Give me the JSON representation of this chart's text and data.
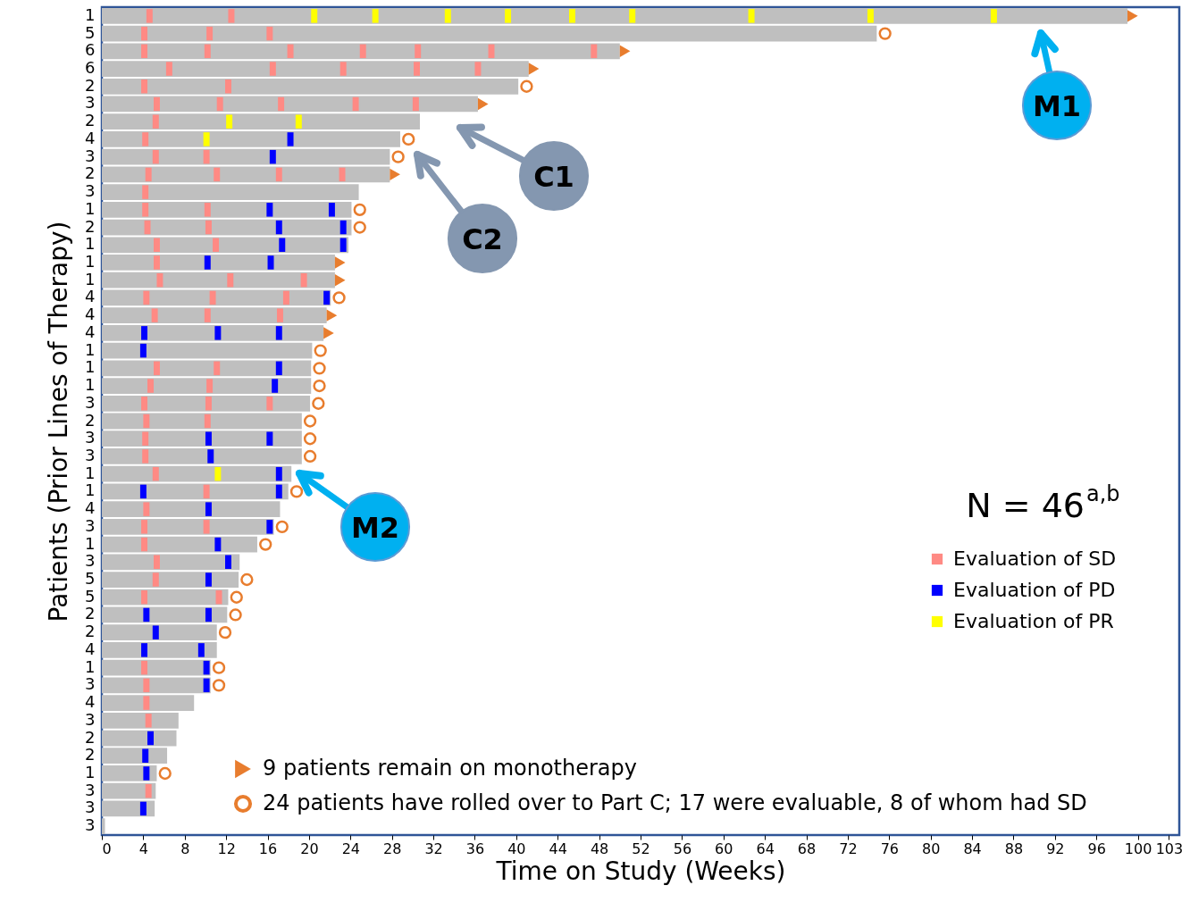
{
  "chart_data": {
    "type": "bar",
    "orientation": "horizontal",
    "xlabel": "Time on Study (Weeks)",
    "ylabel": "Patients (Prior Lines of Therapy)",
    "categories": [
      "1",
      "5",
      "6",
      "6",
      "2",
      "3",
      "2",
      "4",
      "3",
      "2",
      "3",
      "1",
      "2",
      "1",
      "1",
      "1",
      "4",
      "4",
      "4",
      "1",
      "1",
      "1",
      "3",
      "2",
      "3",
      "3",
      "1",
      "1",
      "4",
      "3",
      "1",
      "3",
      "5",
      "5",
      "2",
      "2",
      "4",
      "1",
      "3",
      "4",
      "3",
      "2",
      "2",
      "1",
      "3",
      "3",
      "3"
    ],
    "xlim": [
      0,
      104
    ],
    "xticks": [
      0,
      4,
      8,
      12,
      16,
      20,
      24,
      28,
      32,
      36,
      40,
      44,
      48,
      52,
      56,
      60,
      64,
      68,
      72,
      76,
      80,
      84,
      88,
      92,
      96,
      100,
      103
    ],
    "grid": false,
    "legend": "right",
    "series": [
      {
        "color": "#bfbfbf",
        "values": [
          99.0,
          74.8,
          50.0,
          41.2,
          40.2,
          36.3,
          30.7,
          28.8,
          27.8,
          27.8,
          24.8,
          24.1,
          24.1,
          23.8,
          22.5,
          22.5,
          22.1,
          21.7,
          21.4,
          20.3,
          20.2,
          20.2,
          20.1,
          19.3,
          19.3,
          19.3,
          18.3,
          18.0,
          17.2,
          16.6,
          15.0,
          13.3,
          13.2,
          12.2,
          12.1,
          11.1,
          11.1,
          10.5,
          10.5,
          8.9,
          7.4,
          7.2,
          6.3,
          5.3,
          5.2,
          5.1,
          0.3
        ]
      },
      {
        "name": "Evaluation of SD",
        "type": "scatter",
        "marker": "square",
        "color": "#ff8a84",
        "values": [
          4.6,
          4.1,
          4.1,
          6.5,
          4.1,
          5.3,
          5.2,
          4.2,
          5.2,
          4.5,
          4.2,
          4.2,
          4.4,
          5.3,
          5.3,
          5.6,
          4.3,
          5.1,
          null,
          null,
          5.3,
          4.7,
          4.1,
          4.3,
          4.2,
          4.2,
          5.2,
          10.1,
          4.3,
          4.1,
          4.1,
          5.3,
          5.2,
          4.1,
          null,
          null,
          null,
          4.1,
          4.3,
          4.3,
          4.5,
          null,
          null,
          null,
          4.5,
          null,
          null
        ]
      },
      {
        "type": "scatter",
        "marker": "square",
        "color": "#ff8a84",
        "values": [
          12.5,
          10.4,
          10.2,
          16.5,
          12.2,
          11.4,
          null,
          null,
          10.1,
          11.1,
          null,
          10.2,
          10.3,
          11.0,
          null,
          12.4,
          10.7,
          10.2,
          null,
          null,
          11.1,
          10.4,
          10.3,
          10.2,
          null,
          null,
          null,
          null,
          null,
          10.1,
          null,
          null,
          null,
          11.3,
          null,
          null,
          null,
          null,
          null,
          null,
          null,
          null,
          null,
          null,
          null,
          null,
          null
        ]
      },
      {
        "type": "scatter",
        "marker": "square",
        "color": "#ff8a84",
        "values": [
          null,
          16.2,
          18.2,
          23.3,
          null,
          17.3,
          null,
          null,
          null,
          17.1,
          null,
          null,
          null,
          null,
          null,
          19.5,
          17.8,
          17.2,
          null,
          null,
          null,
          null,
          16.2,
          null,
          null,
          null,
          null,
          null,
          null,
          null,
          null,
          null,
          null,
          null,
          null,
          null,
          null,
          null,
          null,
          null,
          null,
          null,
          null,
          null,
          null,
          null,
          null
        ]
      },
      {
        "type": "scatter",
        "marker": "square",
        "color": "#ff8a84",
        "values": [
          null,
          null,
          25.2,
          30.4,
          null,
          24.5,
          null,
          null,
          null,
          23.2,
          null,
          null,
          null,
          null,
          null,
          null,
          null,
          null,
          null,
          null,
          null,
          null,
          null,
          null,
          null,
          null,
          null,
          null,
          null,
          null,
          null,
          null,
          null,
          null,
          null,
          null,
          null,
          null,
          null,
          null,
          null,
          null,
          null,
          null,
          null,
          null,
          null
        ]
      },
      {
        "type": "scatter",
        "marker": "square",
        "color": "#ff8a84",
        "values": [
          null,
          null,
          30.5,
          36.3,
          null,
          30.3,
          null,
          null,
          null,
          null,
          null,
          null,
          null,
          null,
          null,
          null,
          null,
          null,
          null,
          null,
          null,
          null,
          null,
          null,
          null,
          null,
          null,
          null,
          null,
          null,
          null,
          null,
          null,
          null,
          null,
          null,
          null,
          null,
          null,
          null,
          null,
          null,
          null,
          null,
          null,
          null,
          null
        ]
      },
      {
        "type": "scatter",
        "marker": "square",
        "color": "#ff8a84",
        "values": [
          null,
          null,
          37.6,
          null,
          null,
          null,
          null,
          null,
          null,
          null,
          null,
          null,
          null,
          null,
          null,
          null,
          null,
          null,
          null,
          null,
          null,
          null,
          null,
          null,
          null,
          null,
          null,
          null,
          null,
          null,
          null,
          null,
          null,
          null,
          null,
          null,
          null,
          null,
          null,
          null,
          null,
          null,
          null,
          null,
          null,
          null,
          null
        ]
      },
      {
        "type": "scatter",
        "marker": "square",
        "color": "#ff8a84",
        "values": [
          null,
          null,
          47.5,
          null,
          null,
          null,
          null,
          null,
          null,
          null,
          null,
          null,
          null,
          null,
          null,
          null,
          null,
          null,
          null,
          null,
          null,
          null,
          null,
          null,
          null,
          null,
          null,
          null,
          null,
          null,
          null,
          null,
          null,
          null,
          null,
          null,
          null,
          null,
          null,
          null,
          null,
          null,
          null,
          null,
          null,
          null,
          null
        ]
      },
      {
        "name": "Evaluation of PD",
        "type": "scatter",
        "marker": "square",
        "color": "#0000ff",
        "values": [
          null,
          null,
          null,
          null,
          null,
          null,
          null,
          18.2,
          16.5,
          null,
          null,
          16.2,
          17.1,
          17.4,
          10.2,
          null,
          21.7,
          null,
          4.1,
          4.0,
          17.1,
          16.7,
          null,
          null,
          10.3,
          10.5,
          17.1,
          4.0,
          10.3,
          16.2,
          11.2,
          12.2,
          10.3,
          null,
          4.3,
          5.2,
          4.1,
          10.1,
          10.1,
          null,
          null,
          4.7,
          4.2,
          4.3,
          null,
          4.0,
          null
        ]
      },
      {
        "type": "scatter",
        "marker": "square",
        "color": "#0000ff",
        "values": [
          null,
          null,
          null,
          null,
          null,
          null,
          null,
          null,
          null,
          null,
          null,
          22.2,
          23.3,
          23.3,
          16.3,
          null,
          null,
          null,
          11.2,
          null,
          null,
          null,
          null,
          null,
          16.2,
          null,
          null,
          17.1,
          null,
          null,
          null,
          null,
          null,
          null,
          10.3,
          null,
          9.6,
          null,
          null,
          null,
          null,
          null,
          null,
          null,
          null,
          null,
          null
        ]
      },
      {
        "type": "scatter",
        "marker": "square",
        "color": "#0000ff",
        "values": [
          null,
          null,
          null,
          null,
          null,
          null,
          null,
          null,
          null,
          null,
          null,
          null,
          null,
          null,
          null,
          null,
          null,
          null,
          17.1,
          null,
          null,
          null,
          null,
          null,
          null,
          null,
          null,
          null,
          null,
          null,
          null,
          null,
          null,
          null,
          null,
          null,
          null,
          null,
          null,
          null,
          null,
          null,
          null,
          null,
          null,
          null,
          null
        ]
      },
      {
        "name": "Evaluation of PR",
        "type": "scatter",
        "marker": "square",
        "color": "#ffff00",
        "values": [
          20.5,
          null,
          null,
          null,
          null,
          null,
          12.3,
          10.1,
          null,
          null,
          null,
          null,
          null,
          null,
          null,
          null,
          null,
          null,
          null,
          null,
          null,
          null,
          null,
          null,
          null,
          null,
          11.2,
          null,
          null,
          null,
          null,
          null,
          null,
          null,
          null,
          null,
          null,
          null,
          null,
          null,
          null,
          null,
          null,
          null,
          null,
          null,
          null
        ]
      },
      {
        "type": "scatter",
        "marker": "square",
        "color": "#ffff00",
        "values": [
          26.4,
          null,
          null,
          null,
          null,
          null,
          19.0,
          null,
          null,
          null,
          null,
          null,
          null,
          null,
          null,
          null,
          null,
          null,
          null,
          null,
          null,
          null,
          null,
          null,
          null,
          null,
          null,
          null,
          null,
          null,
          null,
          null,
          null,
          null,
          null,
          null,
          null,
          null,
          null,
          null,
          null,
          null,
          null,
          null,
          null,
          null,
          null
        ]
      },
      {
        "type": "scatter",
        "marker": "square",
        "color": "#ffff00",
        "values": [
          33.4,
          null,
          null,
          null,
          null,
          null,
          null,
          null,
          null,
          null,
          null,
          null,
          null,
          null,
          null,
          null,
          null,
          null,
          null,
          null,
          null,
          null,
          null,
          null,
          null,
          null,
          null,
          null,
          null,
          null,
          null,
          null,
          null,
          null,
          null,
          null,
          null,
          null,
          null,
          null,
          null,
          null,
          null,
          null,
          null,
          null,
          null
        ]
      },
      {
        "type": "scatter",
        "marker": "square",
        "color": "#ffff00",
        "values": [
          39.2,
          null,
          null,
          null,
          null,
          null,
          null,
          null,
          null,
          null,
          null,
          null,
          null,
          null,
          null,
          null,
          null,
          null,
          null,
          null,
          null,
          null,
          null,
          null,
          null,
          null,
          null,
          null,
          null,
          null,
          null,
          null,
          null,
          null,
          null,
          null,
          null,
          null,
          null,
          null,
          null,
          null,
          null,
          null,
          null,
          null,
          null
        ]
      },
      {
        "type": "scatter",
        "marker": "square",
        "color": "#ffff00",
        "values": [
          45.4,
          null,
          null,
          null,
          null,
          null,
          null,
          null,
          null,
          null,
          null,
          null,
          null,
          null,
          null,
          null,
          null,
          null,
          null,
          null,
          null,
          null,
          null,
          null,
          null,
          null,
          null,
          null,
          null,
          null,
          null,
          null,
          null,
          null,
          null,
          null,
          null,
          null,
          null,
          null,
          null,
          null,
          null,
          null,
          null,
          null,
          null
        ]
      },
      {
        "type": "scatter",
        "marker": "square",
        "color": "#ffff00",
        "values": [
          51.2,
          null,
          null,
          null,
          null,
          null,
          null,
          null,
          null,
          null,
          null,
          null,
          null,
          null,
          null,
          null,
          null,
          null,
          null,
          null,
          null,
          null,
          null,
          null,
          null,
          null,
          null,
          null,
          null,
          null,
          null,
          null,
          null,
          null,
          null,
          null,
          null,
          null,
          null,
          null,
          null,
          null,
          null,
          null,
          null,
          null,
          null
        ]
      },
      {
        "type": "scatter",
        "marker": "square",
        "color": "#ffff00",
        "values": [
          62.7,
          null,
          null,
          null,
          null,
          null,
          null,
          null,
          null,
          null,
          null,
          null,
          null,
          null,
          null,
          null,
          null,
          null,
          null,
          null,
          null,
          null,
          null,
          null,
          null,
          null,
          null,
          null,
          null,
          null,
          null,
          null,
          null,
          null,
          null,
          null,
          null,
          null,
          null,
          null,
          null,
          null,
          null,
          null,
          null,
          null,
          null
        ]
      },
      {
        "type": "scatter",
        "marker": "square",
        "color": "#ffff00",
        "values": [
          74.2,
          null,
          null,
          null,
          null,
          null,
          null,
          null,
          null,
          null,
          null,
          null,
          null,
          null,
          null,
          null,
          null,
          null,
          null,
          null,
          null,
          null,
          null,
          null,
          null,
          null,
          null,
          null,
          null,
          null,
          null,
          null,
          null,
          null,
          null,
          null,
          null,
          null,
          null,
          null,
          null,
          null,
          null,
          null,
          null,
          null,
          null
        ]
      },
      {
        "type": "scatter",
        "marker": "square",
        "color": "#ffff00",
        "values": [
          86.1,
          null,
          null,
          null,
          null,
          null,
          null,
          null,
          null,
          null,
          null,
          null,
          null,
          null,
          null,
          null,
          null,
          null,
          null,
          null,
          null,
          null,
          null,
          null,
          null,
          null,
          null,
          null,
          null,
          null,
          null,
          null,
          null,
          null,
          null,
          null,
          null,
          null,
          null,
          null,
          null,
          null,
          null,
          null,
          null,
          null,
          null
        ]
      },
      {
        "name": "9 patients remain on monotherapy",
        "type": "scatter",
        "marker": "triangle",
        "color": "#e87d2e",
        "values": [
          99.5,
          null,
          50.5,
          41.7,
          null,
          36.8,
          null,
          null,
          null,
          28.3,
          null,
          null,
          null,
          null,
          23.0,
          23.0,
          null,
          22.2,
          21.9,
          null,
          null,
          null,
          null,
          null,
          null,
          null,
          null,
          null,
          null,
          null,
          null,
          null,
          null,
          null,
          null,
          null,
          null,
          null,
          null,
          null,
          null,
          null,
          null,
          null,
          null,
          null,
          null
        ]
      },
      {
        "name": "24 patients have rolled over to Part C; 17 were evaluable, 8 of whom had SD",
        "type": "scatter",
        "marker": "circle",
        "color": "#e87d2e",
        "values": [
          null,
          75.6,
          null,
          null,
          41.0,
          null,
          null,
          29.6,
          28.6,
          null,
          null,
          24.9,
          24.9,
          null,
          null,
          null,
          22.9,
          null,
          null,
          21.1,
          21.0,
          21.0,
          20.9,
          20.1,
          20.1,
          20.1,
          null,
          18.8,
          null,
          17.4,
          15.8,
          null,
          14.0,
          13.0,
          12.9,
          11.9,
          null,
          11.3,
          11.3,
          null,
          null,
          null,
          null,
          6.1,
          null,
          null,
          null
        ]
      }
    ],
    "annotations": [
      "N = 46$^{a,b}$",
      "M1",
      "C1",
      "C2",
      "M2"
    ]
  }
}
